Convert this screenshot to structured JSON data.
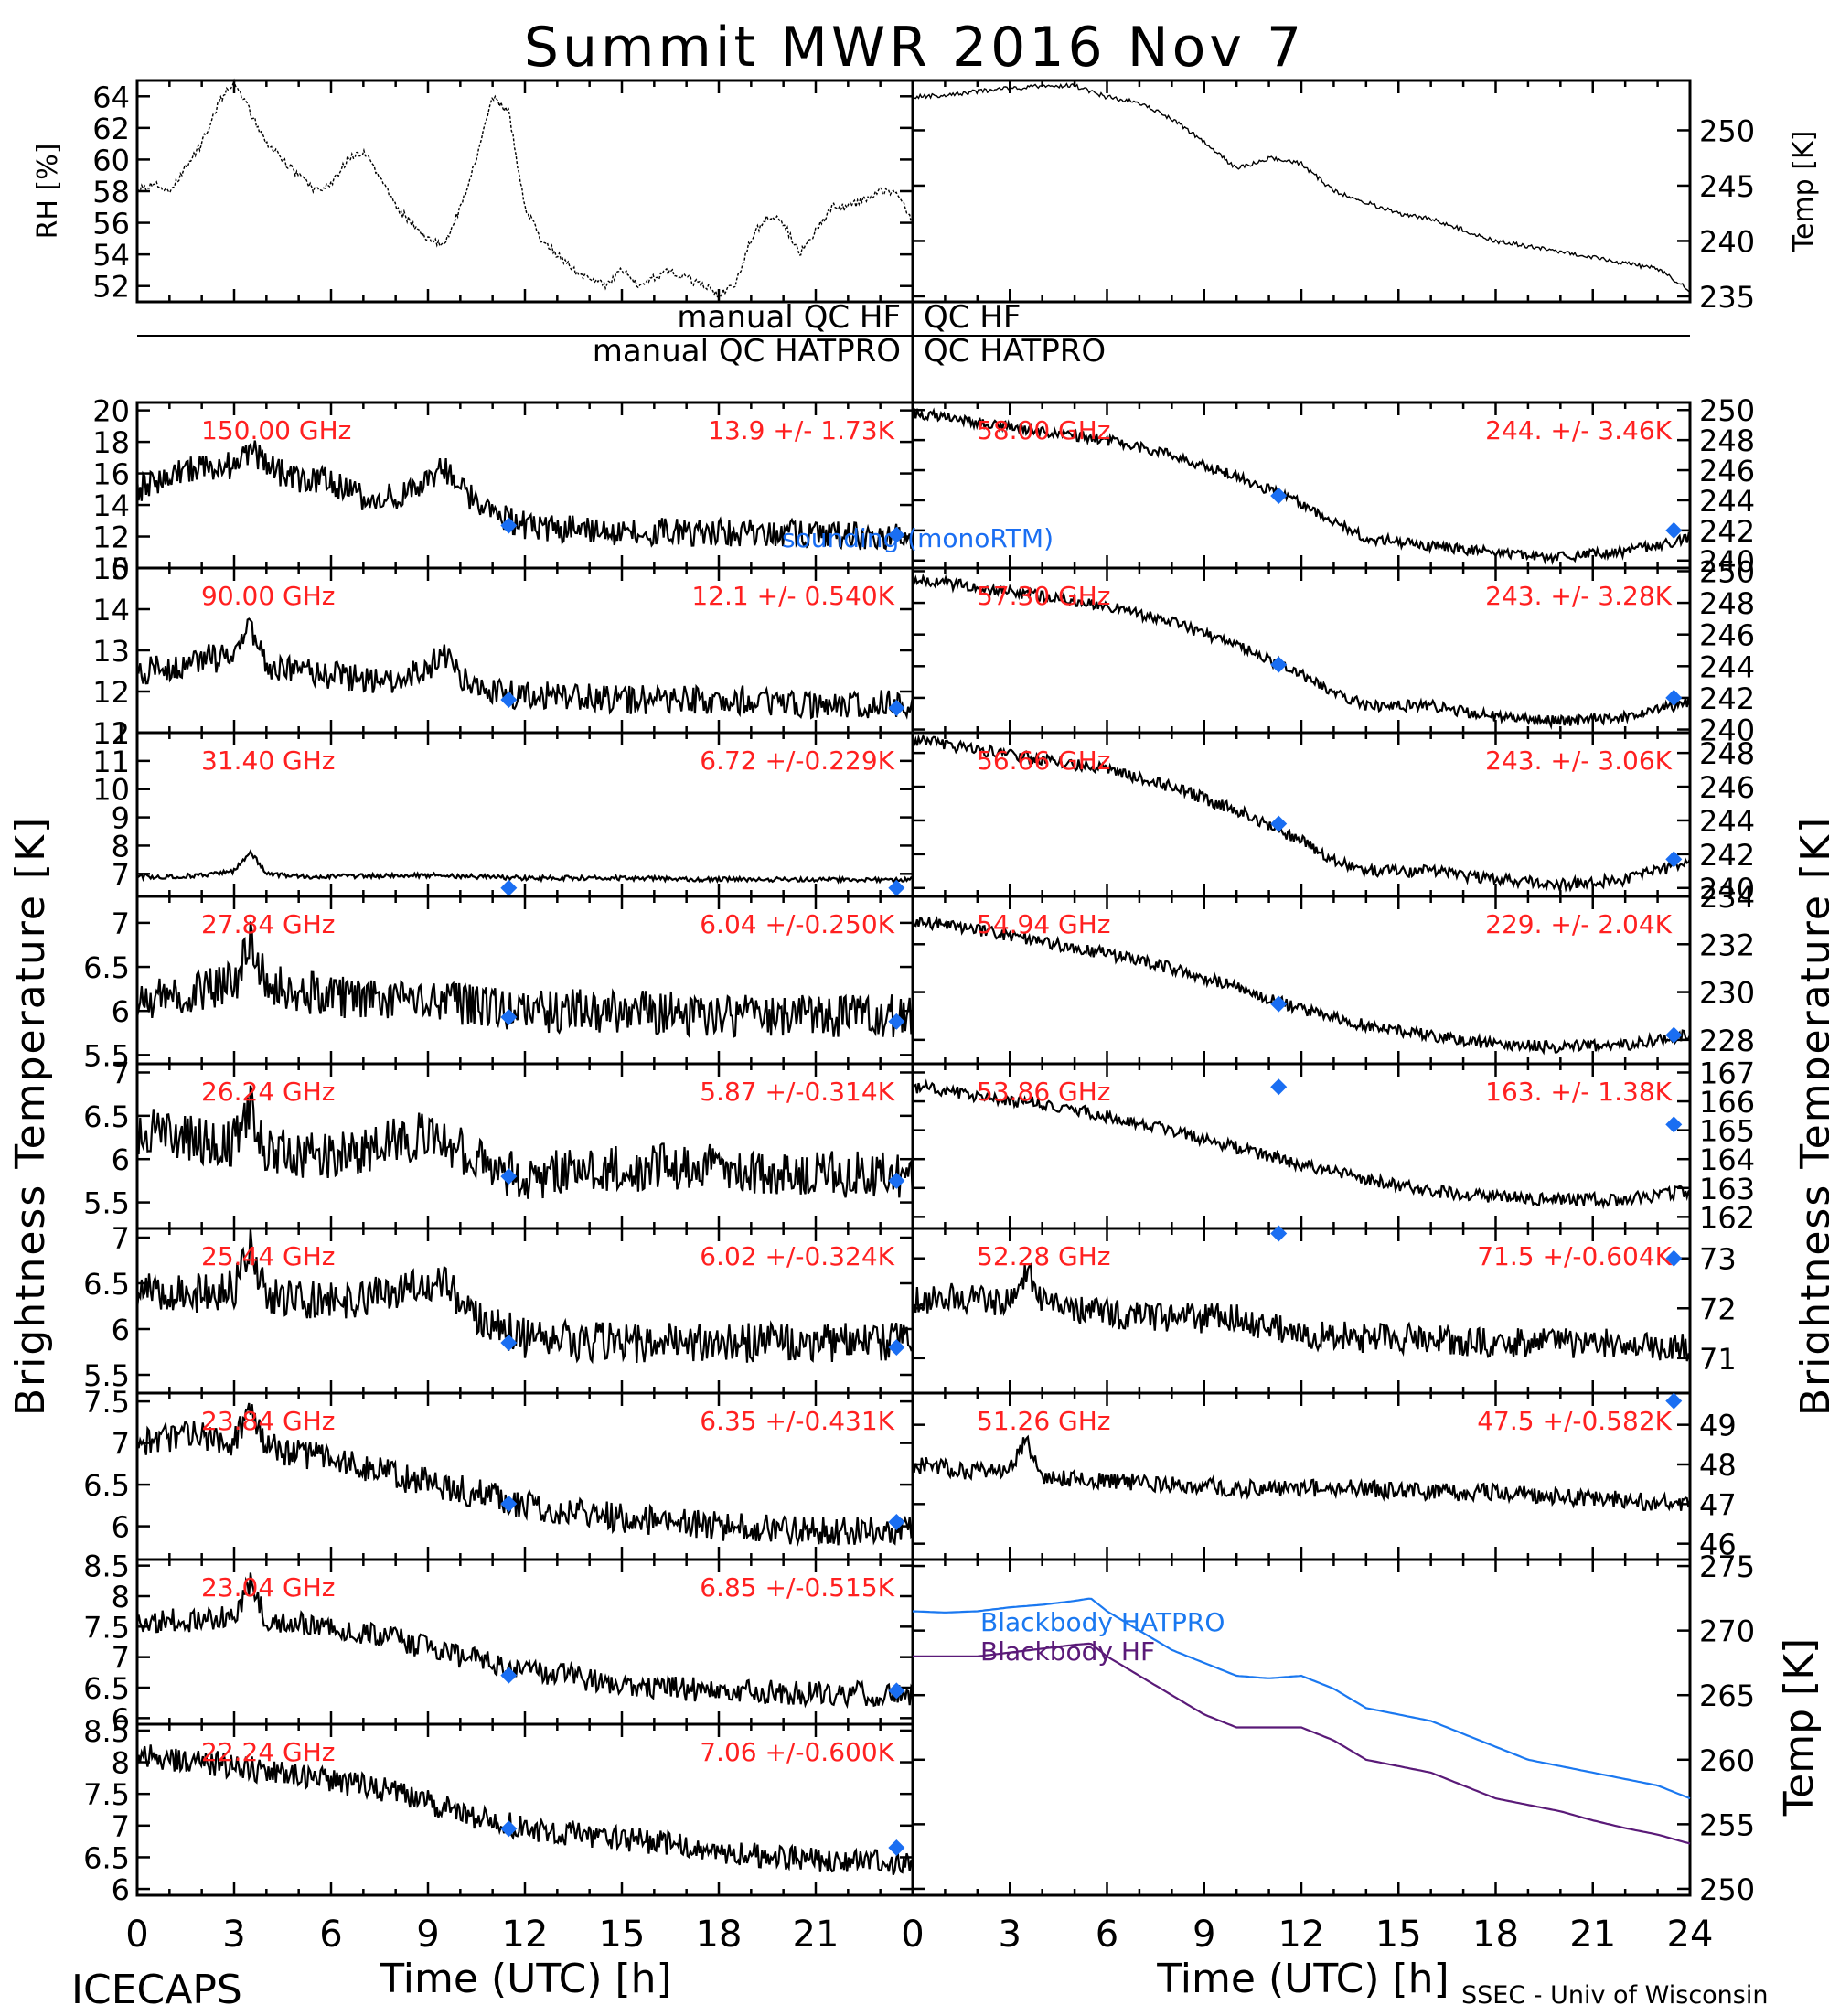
{
  "title": "Summit MWR 2016 Nov  7",
  "footer": {
    "left": "ICECAPS",
    "right": "SSEC - Univ of Wisconsin"
  },
  "x_ticks_left": [
    "0",
    "3",
    "6",
    "9",
    "12",
    "15",
    "18",
    "21"
  ],
  "x_ticks_right": [
    "0",
    "3",
    "6",
    "9",
    "12",
    "15",
    "18",
    "21",
    "24"
  ],
  "xlabel": "Time (UTC) [h]",
  "ylabel_brightness": "Brightness Temperature [K]",
  "qc": {
    "hf": "manual  QC HF",
    "hatpro": "manual  QC HATPRO"
  },
  "legend_sounding": "sounding (monoRTM)",
  "colors": {
    "data": "#000000",
    "label": "#ff2020",
    "marker": "#1a6ef2",
    "hatpro": "#1a78f0",
    "hf": "#5a1a78"
  },
  "chart_data": [
    {
      "type": "line",
      "id": "rh",
      "ylabel": "RH [%]",
      "xlim": [
        0,
        24
      ],
      "ylim": [
        51,
        65
      ],
      "yticks": [
        52,
        54,
        56,
        58,
        60,
        62,
        64
      ],
      "noise": 0.25,
      "sparse": true,
      "x": [
        0,
        0.5,
        1,
        1.5,
        2,
        2.5,
        3,
        3.5,
        4,
        4.5,
        5,
        5.5,
        6,
        6.5,
        7,
        7.5,
        8,
        8.5,
        9,
        9.5,
        10,
        10.5,
        11,
        11.5,
        12,
        12.5,
        13,
        13.5,
        14,
        14.5,
        15,
        15.5,
        16,
        16.5,
        17,
        17.5,
        18,
        18.5,
        19,
        19.5,
        20,
        20.5,
        21,
        21.5,
        22,
        22.5,
        23,
        23.5,
        24
      ],
      "y": [
        58,
        58.5,
        58,
        59.5,
        61,
        63.5,
        65,
        63,
        61,
        60,
        59,
        58,
        58.5,
        60,
        60.5,
        59,
        57,
        56,
        55,
        54.5,
        57,
        60,
        64,
        63,
        57,
        55,
        54,
        53,
        52.5,
        52,
        53,
        52,
        52.5,
        53,
        52.5,
        52,
        51.5,
        52,
        55,
        56.5,
        56,
        54,
        55.5,
        57,
        57,
        57.5,
        58,
        58,
        56
      ]
    },
    {
      "type": "line",
      "id": "temp",
      "ylabel": "Temp [K]",
      "xlim": [
        0,
        24
      ],
      "ylim": [
        234.5,
        254.5
      ],
      "yticks": [
        235,
        240,
        245,
        250
      ],
      "noise": 0.2,
      "x": [
        0,
        1,
        2,
        3,
        4,
        5,
        6,
        7,
        8,
        9,
        10,
        11,
        12,
        13,
        14,
        15,
        16,
        17,
        18,
        19,
        20,
        21,
        22,
        23,
        24
      ],
      "y": [
        253,
        253.2,
        253.5,
        253.8,
        254,
        254,
        253,
        252.5,
        251,
        249,
        246.5,
        247.5,
        247,
        244.5,
        243.5,
        242.5,
        242,
        241,
        240,
        239.5,
        239,
        238.5,
        238,
        237.5,
        235.5
      ]
    },
    {
      "type": "scatter",
      "id": "l150",
      "freq": "150.00 GHz",
      "stats": "13.9 +/-  1.73K",
      "xlim": [
        0,
        24
      ],
      "ylim": [
        10,
        20.5
      ],
      "yticks": [
        10,
        12,
        14,
        16,
        18,
        20
      ],
      "noise": 0.9,
      "sounding": [
        [
          11.5,
          12.7
        ],
        [
          23.5,
          12.1
        ]
      ],
      "x": [
        0,
        1,
        2,
        3,
        3.5,
        4,
        5,
        6,
        7,
        8,
        9,
        9.5,
        10,
        11,
        12,
        13,
        14,
        15,
        16,
        17,
        18,
        19,
        20,
        21,
        22,
        23,
        24
      ],
      "y": [
        15,
        16,
        16.5,
        16.5,
        17.5,
        16.5,
        15.5,
        15.5,
        14.5,
        14.5,
        15.5,
        16.5,
        15,
        13.5,
        12.7,
        12.5,
        12.5,
        12.3,
        12.3,
        12.3,
        12.2,
        12.2,
        12.2,
        12.1,
        12.1,
        12,
        12
      ]
    },
    {
      "type": "scatter",
      "id": "l90",
      "freq": "90.00 GHz",
      "stats": "12.1 +/- 0.540K",
      "xlim": [
        0,
        24
      ],
      "ylim": [
        11,
        15
      ],
      "yticks": [
        11,
        12,
        13,
        14,
        15
      ],
      "noise": 0.35,
      "sounding": [
        [
          11.5,
          11.8
        ],
        [
          23.5,
          11.6
        ]
      ],
      "x": [
        0,
        1,
        2,
        3,
        3.5,
        4,
        5,
        6,
        7,
        8,
        9,
        9.5,
        10,
        11,
        12,
        13,
        14,
        15,
        16,
        17,
        18,
        19,
        20,
        21,
        22,
        23,
        24
      ],
      "y": [
        12.5,
        12.6,
        12.8,
        12.8,
        13.6,
        12.6,
        12.5,
        12.4,
        12.3,
        12.3,
        12.6,
        13,
        12.3,
        12,
        11.9,
        11.9,
        11.9,
        11.8,
        11.8,
        11.8,
        11.8,
        11.8,
        11.7,
        11.7,
        11.7,
        11.7,
        11.7
      ]
    },
    {
      "type": "scatter",
      "id": "l31",
      "freq": "31.40 GHz",
      "stats": "6.72 +/-0.229K",
      "xlim": [
        0,
        24
      ],
      "ylim": [
        6.2,
        12
      ],
      "yticks": [
        7,
        8,
        9,
        10,
        11,
        12
      ],
      "noise": 0.08,
      "sounding": [
        [
          11.5,
          6.5
        ],
        [
          23.5,
          6.5
        ]
      ],
      "x": [
        0,
        1,
        2,
        3,
        3.5,
        4,
        5,
        6,
        9,
        12,
        15,
        18,
        21,
        24
      ],
      "y": [
        6.9,
        6.9,
        6.95,
        7.1,
        7.8,
        7,
        6.9,
        6.9,
        6.95,
        6.85,
        6.85,
        6.8,
        6.8,
        6.8
      ]
    },
    {
      "type": "scatter",
      "id": "l2784",
      "freq": "27.84 GHz",
      "stats": "6.04 +/-0.250K",
      "xlim": [
        0,
        24
      ],
      "ylim": [
        5.4,
        7.3
      ],
      "yticks": [
        5.5,
        6.0,
        6.5,
        7.0
      ],
      "noise": 0.25,
      "sounding": [
        [
          11.5,
          5.93
        ],
        [
          23.5,
          5.88
        ]
      ],
      "x": [
        0,
        2,
        3,
        3.5,
        4,
        6,
        9,
        12,
        15,
        18,
        21,
        24
      ],
      "y": [
        6.05,
        6.25,
        6.3,
        6.8,
        6.3,
        6.15,
        6.1,
        6.0,
        6.0,
        5.95,
        5.95,
        5.95
      ]
    },
    {
      "type": "scatter",
      "id": "l2624",
      "freq": "26.24 GHz",
      "stats": "5.87 +/-0.314K",
      "xlim": [
        0,
        24
      ],
      "ylim": [
        5.2,
        7.1
      ],
      "yticks": [
        5.5,
        6.0,
        6.5,
        7.0
      ],
      "noise": 0.28,
      "sounding": [
        [
          11.5,
          5.8
        ],
        [
          23.5,
          5.75
        ]
      ],
      "x": [
        0,
        1,
        2,
        3,
        3.5,
        4,
        6,
        8,
        9,
        10,
        11,
        12,
        15,
        18,
        21,
        24
      ],
      "y": [
        6.3,
        6.3,
        6.2,
        6.2,
        6.6,
        6.1,
        6.0,
        6.2,
        6.3,
        6.1,
        5.9,
        5.8,
        5.9,
        5.9,
        5.85,
        5.8
      ]
    },
    {
      "type": "scatter",
      "id": "l2544",
      "freq": "25.44 GHz",
      "stats": "6.02 +/-0.324K",
      "xlim": [
        0,
        24
      ],
      "ylim": [
        5.3,
        7.1
      ],
      "yticks": [
        5.5,
        6.0,
        6.5,
        7.0
      ],
      "noise": 0.22,
      "sounding": [
        [
          11.5,
          5.85
        ],
        [
          23.5,
          5.8
        ]
      ],
      "x": [
        0,
        2,
        3,
        3.5,
        4,
        6,
        8,
        9.5,
        10.5,
        12,
        15,
        18,
        21,
        24
      ],
      "y": [
        6.4,
        6.4,
        6.45,
        6.9,
        6.35,
        6.3,
        6.4,
        6.5,
        6.1,
        5.9,
        5.85,
        5.85,
        5.85,
        5.85
      ]
    },
    {
      "type": "scatter",
      "id": "l2384",
      "freq": "23.84 GHz",
      "stats": "6.35 +/-0.431K",
      "xlim": [
        0,
        24
      ],
      "ylim": [
        5.6,
        7.6
      ],
      "yticks": [
        6.0,
        6.5,
        7.0,
        7.5
      ],
      "noise": 0.18,
      "sounding": [
        [
          11.5,
          6.27
        ],
        [
          23.5,
          6.05
        ]
      ],
      "x": [
        0,
        2,
        3,
        3.5,
        4,
        6,
        8,
        10,
        12,
        15,
        18,
        21,
        24
      ],
      "y": [
        7.0,
        7.1,
        7.0,
        7.4,
        6.95,
        6.8,
        6.6,
        6.45,
        6.25,
        6.1,
        6.0,
        5.95,
        5.95
      ]
    },
    {
      "type": "scatter",
      "id": "l2304",
      "freq": "23.04 GHz",
      "stats": "6.85 +/-0.515K",
      "xlim": [
        0,
        24
      ],
      "ylim": [
        5.9,
        8.6
      ],
      "yticks": [
        6.0,
        6.5,
        7.0,
        7.5,
        8.0,
        8.5
      ],
      "noise": 0.2,
      "sounding": [
        [
          11.5,
          6.7
        ],
        [
          23.5,
          6.45
        ]
      ],
      "x": [
        0,
        2,
        3,
        3.5,
        4,
        6,
        8,
        10,
        12,
        15,
        18,
        21,
        24
      ],
      "y": [
        7.6,
        7.6,
        7.7,
        8.2,
        7.6,
        7.5,
        7.3,
        7.0,
        6.8,
        6.55,
        6.45,
        6.4,
        6.4
      ]
    },
    {
      "type": "scatter",
      "id": "l2224",
      "freq": "22.24 GHz",
      "stats": "7.06 +/-0.600K",
      "xlim": [
        0,
        24
      ],
      "ylim": [
        5.9,
        8.6
      ],
      "yticks": [
        6.0,
        6.5,
        7.0,
        7.5,
        8.0,
        8.5
      ],
      "noise": 0.2,
      "sounding": [
        [
          11.5,
          6.95
        ],
        [
          23.5,
          6.65
        ]
      ],
      "x": [
        0,
        2,
        3,
        4,
        6,
        8,
        10,
        12,
        15,
        18,
        21,
        24
      ],
      "y": [
        8.1,
        8.0,
        7.95,
        7.85,
        7.7,
        7.55,
        7.2,
        6.95,
        6.8,
        6.6,
        6.45,
        6.4
      ]
    },
    {
      "type": "scatter",
      "id": "r5800",
      "freq": "58.00 GHz",
      "stats": "244. +/- 3.46K",
      "xlim": [
        0,
        24
      ],
      "ylim": [
        239.5,
        250.5
      ],
      "yticks": [
        240,
        242,
        244,
        246,
        248,
        250
      ],
      "noise": 0.35,
      "sounding": [
        [
          11.3,
          244.3
        ],
        [
          23.5,
          242
        ]
      ],
      "x": [
        0,
        2,
        4,
        6,
        8,
        10,
        12,
        13,
        14,
        16,
        18,
        20,
        22,
        24
      ],
      "y": [
        249.8,
        249.2,
        248.6,
        248,
        247,
        245.6,
        243.8,
        242.6,
        241.5,
        241,
        240.5,
        240.2,
        240.6,
        241.5
      ]
    },
    {
      "type": "scatter",
      "id": "r5730",
      "freq": "57.30 GHz",
      "stats": "243. +/- 3.28K",
      "xlim": [
        0,
        24
      ],
      "ylim": [
        239.8,
        250.2
      ],
      "yticks": [
        240,
        242,
        244,
        246,
        248,
        250
      ],
      "noise": 0.35,
      "sounding": [
        [
          11.3,
          244.1
        ],
        [
          23.5,
          242
        ]
      ],
      "x": [
        0,
        2,
        4,
        6,
        8,
        10,
        12,
        13,
        14,
        16,
        18,
        20,
        22,
        24
      ],
      "y": [
        249.5,
        249,
        248.4,
        247.8,
        246.8,
        245.3,
        243.5,
        242.3,
        241.5,
        241.5,
        240.8,
        240.5,
        240.8,
        241.7
      ]
    },
    {
      "type": "scatter",
      "id": "r5666",
      "freq": "56.66 GHz",
      "stats": "243. +/- 3.06K",
      "xlim": [
        0,
        24
      ],
      "ylim": [
        239.5,
        249.2
      ],
      "yticks": [
        240,
        242,
        244,
        246,
        248
      ],
      "noise": 0.35,
      "sounding": [
        [
          11.3,
          243.8
        ],
        [
          23.5,
          241.7
        ]
      ],
      "x": [
        0,
        2,
        4,
        6,
        8,
        10,
        12,
        13,
        14,
        16,
        18,
        20,
        22,
        24
      ],
      "y": [
        248.8,
        248.2,
        247.6,
        247,
        246,
        244.6,
        242.8,
        241.6,
        241,
        241,
        240.5,
        240.2,
        240.5,
        241.5
      ]
    },
    {
      "type": "scatter",
      "id": "r5494",
      "freq": "54.94 GHz",
      "stats": "229. +/- 2.04K",
      "xlim": [
        0,
        24
      ],
      "ylim": [
        227,
        234
      ],
      "yticks": [
        228,
        230,
        232,
        234
      ],
      "noise": 0.25,
      "sounding": [
        [
          11.3,
          229.5
        ],
        [
          23.5,
          228.2
        ]
      ],
      "x": [
        0,
        2,
        4,
        6,
        8,
        10,
        12,
        14,
        16,
        18,
        20,
        22,
        24
      ],
      "y": [
        233,
        232.6,
        232.1,
        231.6,
        231,
        230.2,
        229.3,
        228.6,
        228.2,
        227.8,
        227.7,
        227.8,
        228.2
      ]
    },
    {
      "type": "scatter",
      "id": "r5386",
      "freq": "53.86 GHz",
      "stats": "163. +/- 1.38K",
      "xlim": [
        0,
        24
      ],
      "ylim": [
        161.6,
        167.3
      ],
      "yticks": [
        162,
        163,
        164,
        165,
        166,
        167
      ],
      "noise": 0.22,
      "sounding": [
        [
          11.3,
          166.5
        ],
        [
          23.5,
          165.2
        ]
      ],
      "x": [
        0,
        2,
        4,
        6,
        8,
        10,
        12,
        14,
        16,
        18,
        20,
        22,
        24
      ],
      "y": [
        166.5,
        166.2,
        165.9,
        165.5,
        165,
        164.4,
        163.8,
        163.3,
        162.9,
        162.7,
        162.6,
        162.6,
        162.9
      ]
    },
    {
      "type": "scatter",
      "id": "r5228",
      "freq": "52.28 GHz",
      "stats": "71.5 +/-0.604K",
      "xlim": [
        0,
        24
      ],
      "ylim": [
        70.3,
        73.6
      ],
      "yticks": [
        71,
        72,
        73
      ],
      "noise": 0.3,
      "sounding": [
        [
          11.3,
          73.5
        ],
        [
          23.5,
          73
        ]
      ],
      "x": [
        0,
        2,
        3,
        3.5,
        4,
        6,
        8,
        10,
        12,
        14,
        16,
        18,
        20,
        22,
        24
      ],
      "y": [
        72.2,
        72.2,
        72.1,
        72.8,
        72.1,
        71.9,
        71.8,
        71.8,
        71.5,
        71.4,
        71.4,
        71.3,
        71.3,
        71.3,
        71.2
      ]
    },
    {
      "type": "scatter",
      "id": "r5126",
      "freq": "51.26 GHz",
      "stats": "47.5 +/-0.582K",
      "xlim": [
        0,
        24
      ],
      "ylim": [
        45.6,
        49.8
      ],
      "yticks": [
        46,
        47,
        48,
        49
      ],
      "noise": 0.22,
      "sounding": [
        [
          23.5,
          49.6
        ]
      ],
      "x": [
        0,
        2,
        3,
        3.5,
        4,
        6,
        8,
        10,
        12,
        14,
        16,
        18,
        20,
        22,
        24
      ],
      "y": [
        48,
        47.8,
        47.9,
        48.6,
        47.7,
        47.6,
        47.5,
        47.4,
        47.4,
        47.4,
        47.3,
        47.3,
        47.2,
        47.1,
        47
      ]
    },
    {
      "type": "line",
      "id": "bb",
      "ylabel": "Temp [K]",
      "xlim": [
        0,
        24
      ],
      "ylim": [
        249.5,
        275.5
      ],
      "yticks": [
        250,
        255,
        260,
        265,
        270,
        275
      ],
      "series": [
        {
          "name": "Blackbody HATPRO",
          "color": "#1a78f0",
          "x": [
            0,
            1,
            2,
            3,
            4,
            5,
            5.5,
            6,
            7,
            8,
            9,
            10,
            11,
            12,
            13,
            14,
            15,
            16,
            17,
            18,
            19,
            20,
            21,
            22,
            23,
            24
          ],
          "y": [
            271.5,
            271.4,
            271.5,
            271.8,
            272,
            272.3,
            272.5,
            271.5,
            270,
            268.5,
            267.5,
            266.5,
            266.3,
            266.5,
            265.5,
            264,
            263.5,
            263,
            262,
            261,
            260,
            259.5,
            259,
            258.5,
            258,
            257
          ]
        },
        {
          "name": "Blackbody HF",
          "color": "#5a1a78",
          "x": [
            0,
            1,
            2,
            3,
            4,
            5,
            5.5,
            6,
            7,
            8,
            9,
            10,
            11,
            12,
            13,
            14,
            15,
            16,
            17,
            18,
            19,
            20,
            21,
            22,
            23,
            24
          ],
          "y": [
            268,
            268,
            268,
            268.3,
            268.6,
            268.9,
            269,
            268,
            266.5,
            265,
            263.5,
            262.5,
            262.5,
            262.5,
            261.5,
            260,
            259.5,
            259,
            258,
            257,
            256.5,
            256,
            255.3,
            254.7,
            254.2,
            253.5
          ]
        }
      ]
    }
  ]
}
